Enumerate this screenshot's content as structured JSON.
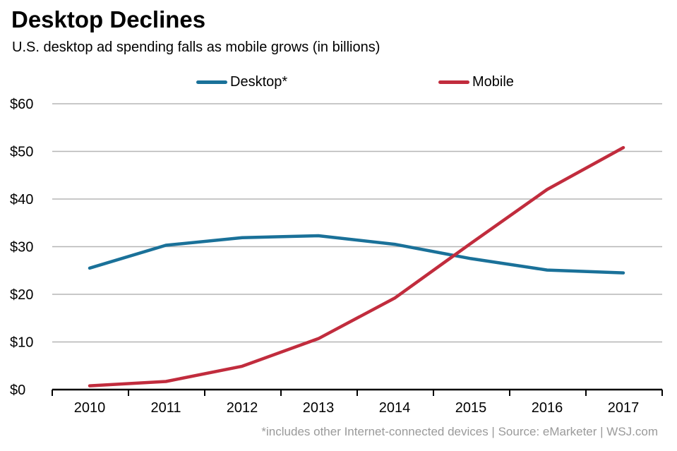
{
  "colors": {
    "desktop": "#1a7199",
    "mobile": "#c12c3d",
    "grid": "#b5b5b5",
    "axis": "#000000",
    "source_text": "#9a9a9a"
  },
  "chart_data": {
    "type": "line",
    "title": "Desktop Declines",
    "subtitle": "U.S. desktop ad spending falls as mobile grows (in billions)",
    "categories": [
      "2010",
      "2011",
      "2012",
      "2013",
      "2014",
      "2015",
      "2016",
      "2017"
    ],
    "series": [
      {
        "name": "Desktop*",
        "color": "#1a7199",
        "values": [
          25.5,
          30.3,
          31.9,
          32.3,
          30.5,
          27.5,
          25.1,
          24.5
        ]
      },
      {
        "name": "Mobile",
        "color": "#c12c3d",
        "values": [
          0.8,
          1.7,
          4.9,
          10.7,
          19.2,
          30.7,
          42.0,
          50.8
        ]
      }
    ],
    "y_ticks": [
      "$0",
      "$10",
      "$20",
      "$30",
      "$40",
      "$50",
      "$60"
    ],
    "ylim": [
      0,
      60
    ],
    "grid": true,
    "legend_position": "top-center",
    "source": "*includes other Internet-connected devices | Source: eMarketer  |  WSJ.com"
  }
}
